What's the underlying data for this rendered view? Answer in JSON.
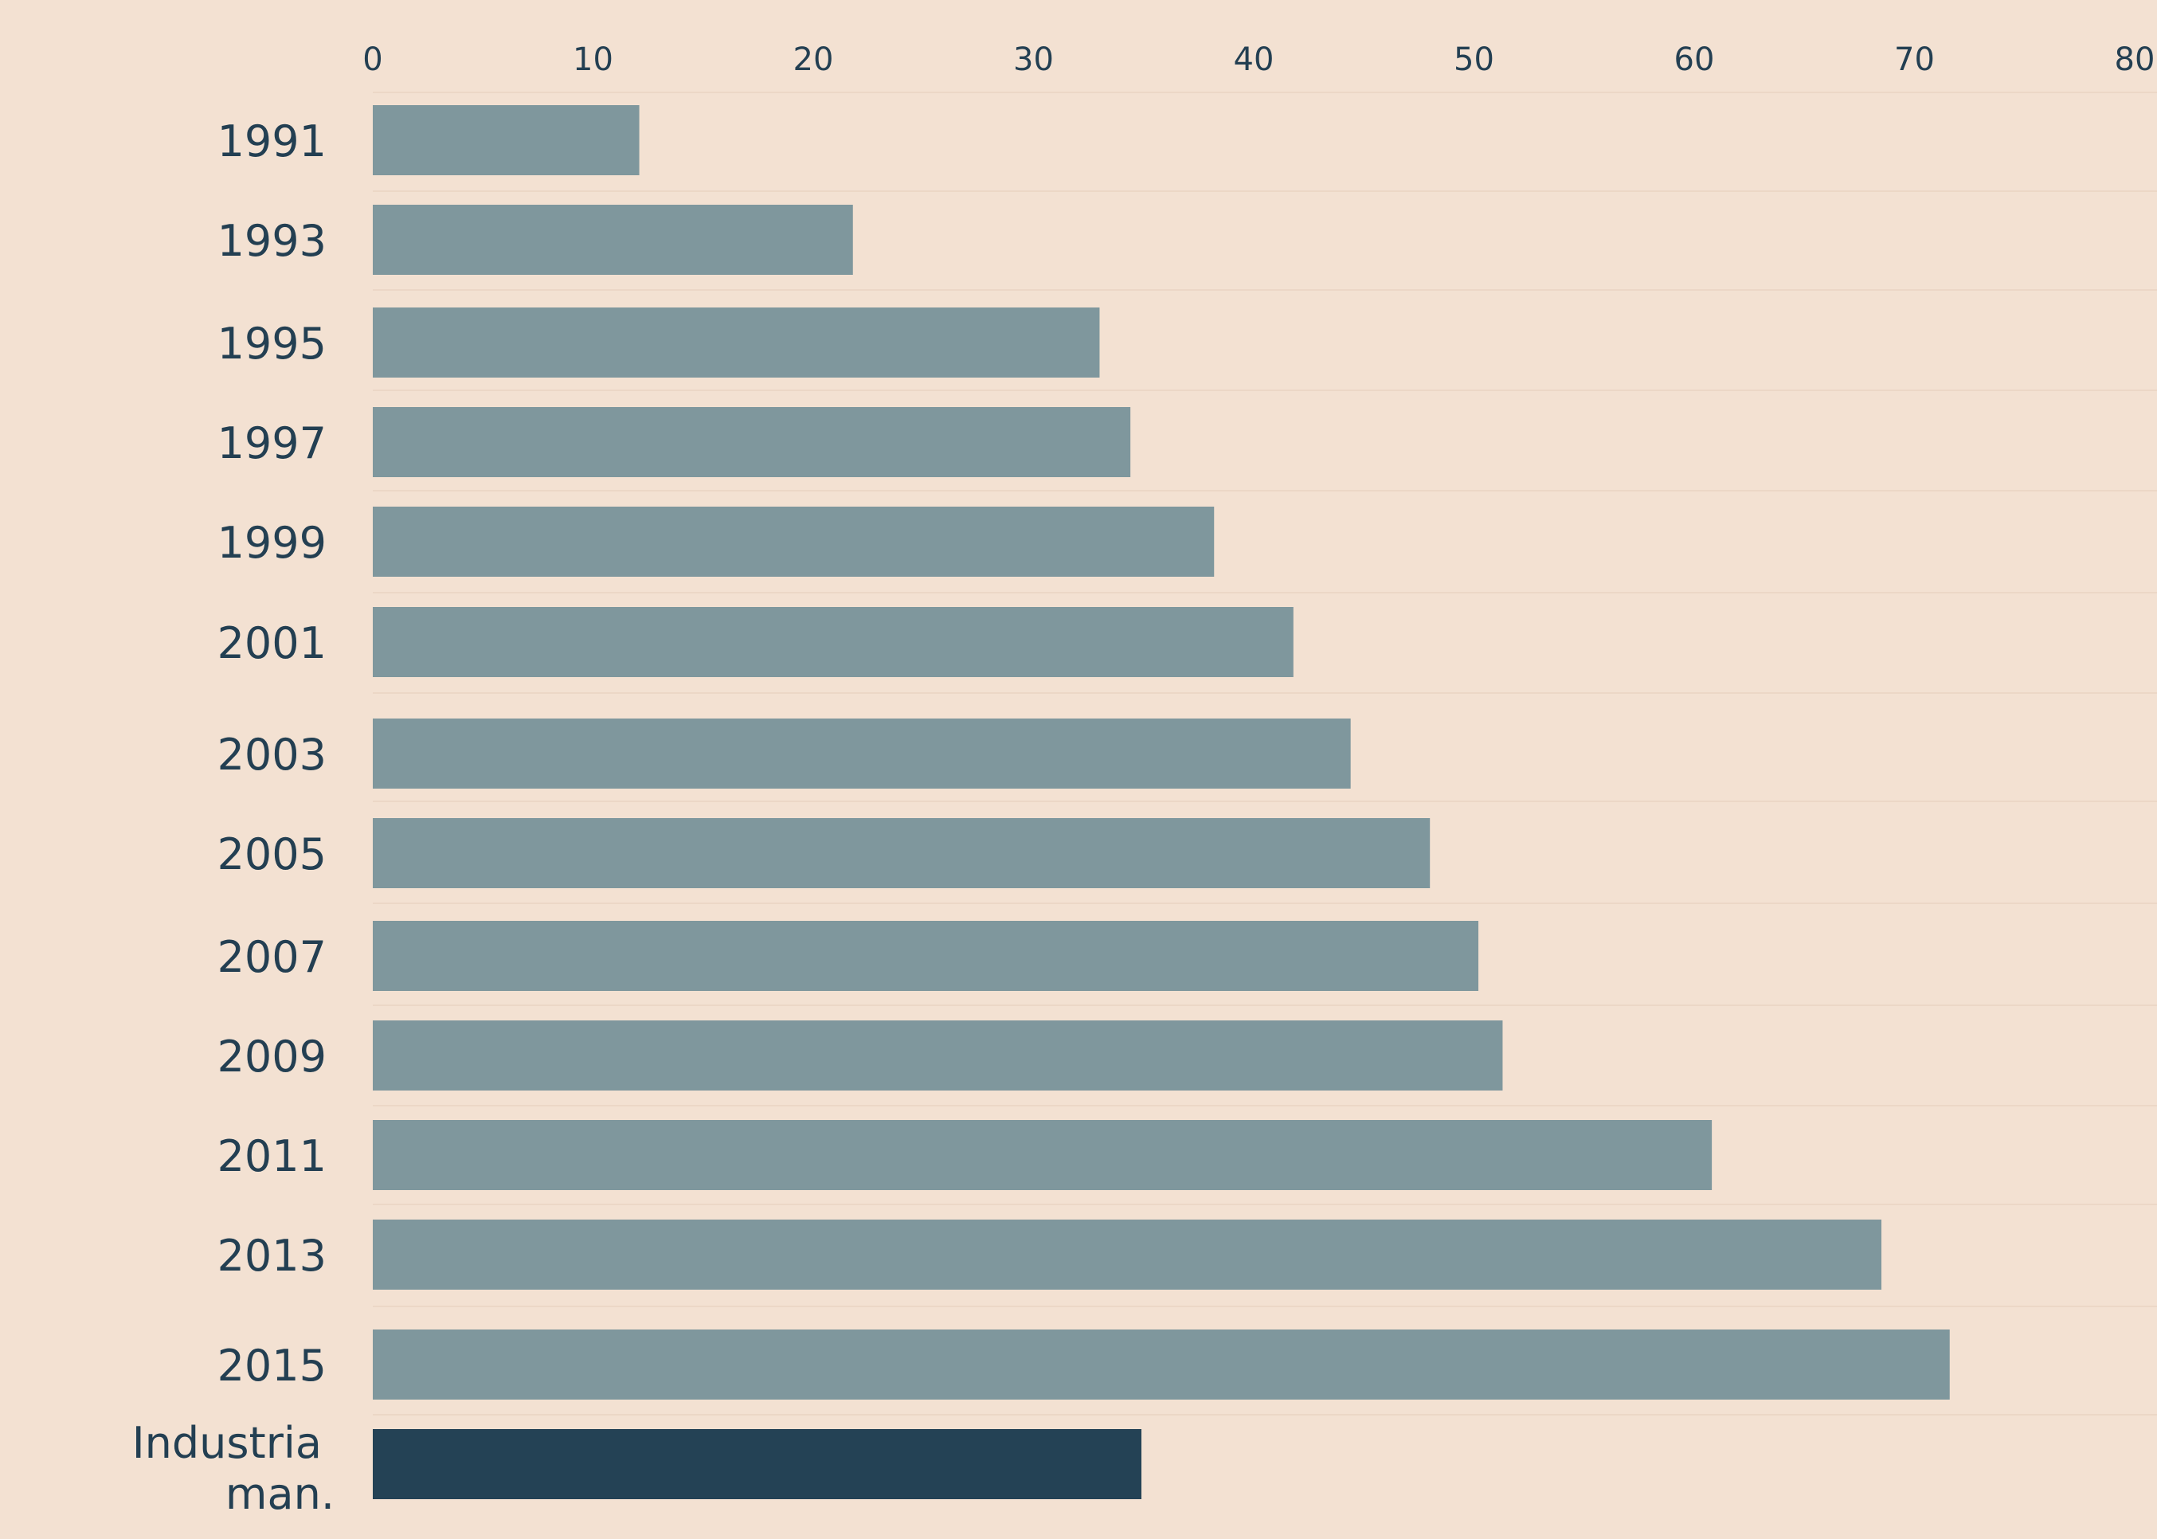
{
  "chart_data": {
    "type": "bar",
    "orientation": "horizontal",
    "categories": [
      "1991",
      "1993",
      "1995",
      "1997",
      "1999",
      "2001",
      "2003",
      "2005",
      "2007",
      "2009",
      "2011",
      "2013",
      "2015",
      "Industria man."
    ],
    "values": [
      12.1,
      21.8,
      33.0,
      34.4,
      38.2,
      41.8,
      44.4,
      48.0,
      50.2,
      51.3,
      60.8,
      68.5,
      71.6,
      34.9
    ],
    "highlight_index": 13,
    "xlim": [
      0,
      80
    ],
    "xticks": [
      0,
      10,
      20,
      30,
      40,
      50,
      60,
      70,
      80
    ],
    "x_axis_position": "top",
    "grid": true,
    "title": "",
    "xlabel": "",
    "ylabel": "",
    "colors": {
      "background": "#f3e1d2",
      "bar": "#7f979d",
      "highlight": "#244255",
      "text": "#233f52",
      "grid": "#ecd7c6"
    }
  }
}
